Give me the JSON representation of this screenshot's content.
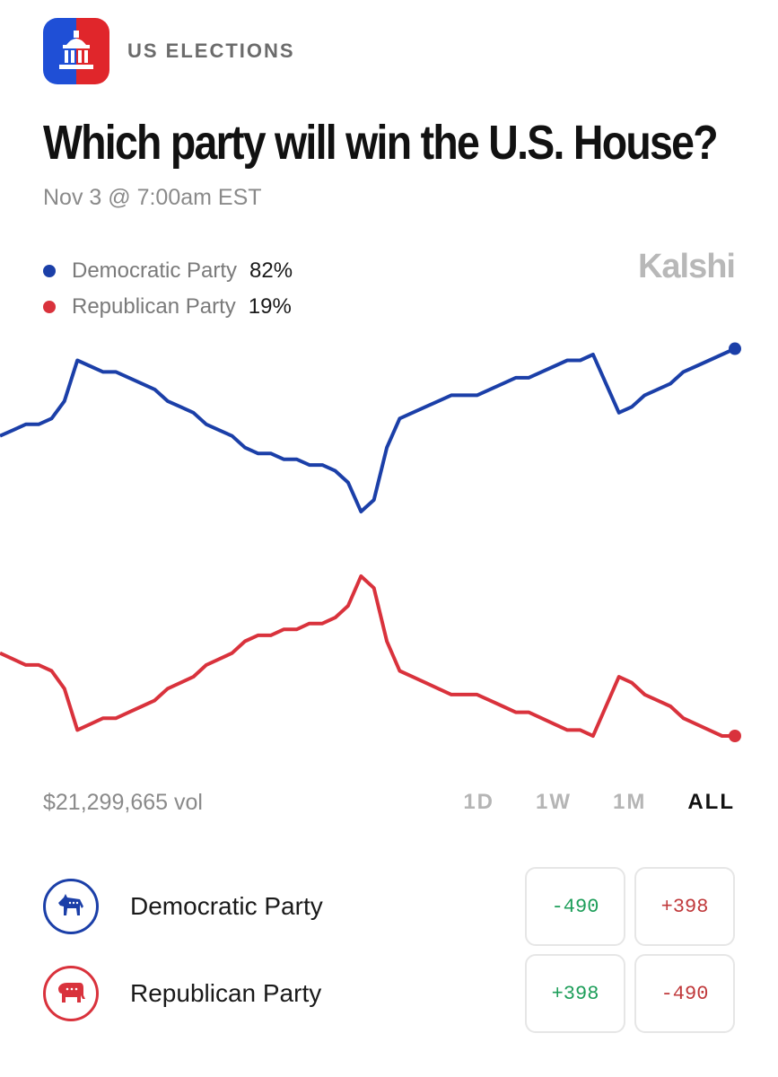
{
  "header": {
    "category": "US ELECTIONS"
  },
  "title": "Which party will win the U.S. House?",
  "subtitle": "Nov 3 @ 7:00am EST",
  "brand": "Kalshi",
  "legend": [
    {
      "name": "Democratic Party",
      "value": "82%"
    },
    {
      "name": "Republican Party",
      "value": "19%"
    }
  ],
  "colors": {
    "democratic": "#1b3fa8",
    "republican": "#d9323c",
    "positive": "#1e9e5a",
    "negative": "#c0393b"
  },
  "volume": "$21,299,665 vol",
  "ranges": [
    "1D",
    "1W",
    "1M",
    "ALL"
  ],
  "active_range": "ALL",
  "markets": [
    {
      "name": "Democratic Party",
      "icon": "donkey-icon",
      "yes": "-490",
      "no": "+398"
    },
    {
      "name": "Republican Party",
      "icon": "elephant-icon",
      "yes": "+398",
      "no": "-490"
    }
  ],
  "chart_data": {
    "type": "line",
    "title": "",
    "xlabel": "",
    "ylabel": "",
    "ylim": [
      0,
      100
    ],
    "grid": false,
    "series": [
      {
        "name": "Democratic Party",
        "values": [
          67,
          68,
          69,
          69,
          70,
          73,
          80,
          79,
          78,
          78,
          77,
          76,
          75,
          73,
          72,
          71,
          69,
          68,
          67,
          65,
          64,
          64,
          63,
          63,
          62,
          62,
          61,
          59,
          54,
          56,
          65,
          70,
          71,
          72,
          73,
          74,
          74,
          74,
          75,
          76,
          77,
          77,
          78,
          79,
          80,
          80,
          81,
          76,
          71,
          72,
          74,
          75,
          76,
          78,
          79,
          80,
          81,
          82
        ]
      },
      {
        "name": "Republican Party",
        "values": [
          33,
          32,
          31,
          31,
          30,
          27,
          20,
          21,
          22,
          22,
          23,
          24,
          25,
          27,
          28,
          29,
          31,
          32,
          33,
          35,
          36,
          36,
          37,
          37,
          38,
          38,
          39,
          41,
          46,
          44,
          35,
          30,
          29,
          28,
          27,
          26,
          26,
          26,
          25,
          24,
          23,
          23,
          22,
          21,
          20,
          20,
          19,
          24,
          29,
          28,
          26,
          25,
          24,
          22,
          21,
          20,
          19,
          19
        ]
      }
    ]
  }
}
